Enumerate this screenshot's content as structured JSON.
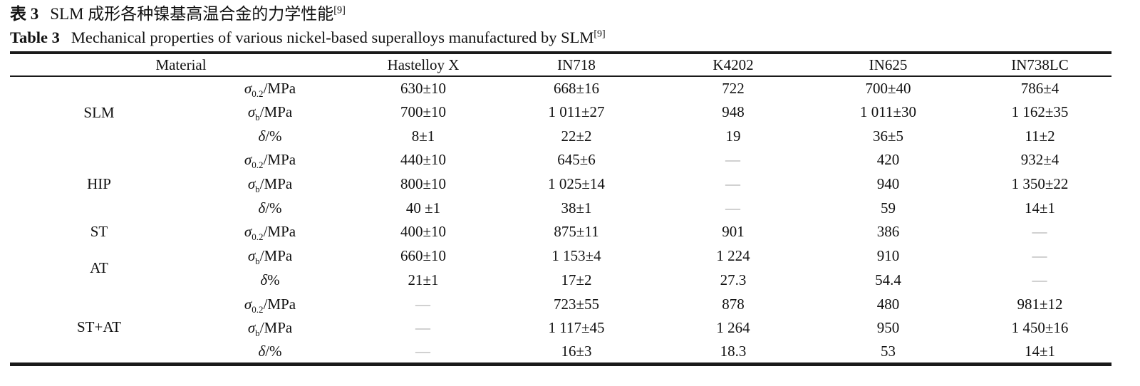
{
  "caption": {
    "zh_label": "表 3",
    "zh_text": "SLM 成形各种镍基高温合金的力学性能",
    "zh_ref": "[9]",
    "en_label": "Table 3",
    "en_text": "Mechanical properties of various nickel-based superalloys manufactured by SLM",
    "en_ref": "[9]"
  },
  "table": {
    "header": {
      "material": "Material",
      "columns": [
        "Hastelloy X",
        "IN718",
        "K4202",
        "IN625",
        "IN738LC"
      ]
    },
    "dash_color": "#a3a3a3",
    "rows": [
      {
        "group": "SLM",
        "prop": {
          "sym": "σ",
          "sub": "0.2",
          "rest": "/MPa"
        },
        "values": [
          "630±10",
          "668±16",
          "722",
          "700±40",
          "786±4"
        ]
      },
      {
        "prop": {
          "sym": "σ",
          "sub": "b",
          "rest": "/MPa"
        },
        "values": [
          "700±10",
          "1 011±27",
          "948",
          "1 011±30",
          "1 162±35"
        ]
      },
      {
        "prop": {
          "sym": "δ",
          "sub": "",
          "rest": "/%"
        },
        "values": [
          "8±1",
          "22±2",
          "19",
          "36±5",
          "11±2"
        ]
      },
      {
        "group": "HIP",
        "prop": {
          "sym": "σ",
          "sub": "0.2",
          "rest": "/MPa"
        },
        "values": [
          "440±10",
          "645±6",
          "—",
          "420",
          "932±4"
        ]
      },
      {
        "prop": {
          "sym": "σ",
          "sub": "b",
          "rest": "/MPa"
        },
        "values": [
          "800±10",
          "1 025±14",
          "—",
          "940",
          "1 350±22"
        ]
      },
      {
        "prop": {
          "sym": "δ",
          "sub": "",
          "rest": "/%"
        },
        "values": [
          "40 ±1",
          "38±1",
          "—",
          "59",
          "14±1"
        ]
      },
      {
        "group": "ST",
        "prop": {
          "sym": "σ",
          "sub": "0.2",
          "rest": "/MPa"
        },
        "values": [
          "400±10",
          "875±11",
          "901",
          "386",
          "—"
        ]
      },
      {
        "group": "AT",
        "prop": {
          "sym": "σ",
          "sub": "b",
          "rest": "/MPa"
        },
        "values": [
          "660±10",
          "1 153±4",
          "1 224",
          "910",
          "—"
        ]
      },
      {
        "prop": {
          "sym": "δ",
          "sub": "",
          "rest": "%"
        },
        "values": [
          "21±1",
          "17±2",
          "27.3",
          "54.4",
          "—"
        ]
      },
      {
        "group": "ST+AT",
        "prop": {
          "sym": "σ",
          "sub": "0.2",
          "rest": "/MPa"
        },
        "values": [
          "—",
          "723±55",
          "878",
          "480",
          "981±12"
        ]
      },
      {
        "prop": {
          "sym": "σ",
          "sub": "b",
          "rest": "/MPa"
        },
        "values": [
          "—",
          "1 117±45",
          "1 264",
          "950",
          "1 450±16"
        ]
      },
      {
        "prop": {
          "sym": "δ",
          "sub": "",
          "rest": "/%"
        },
        "values": [
          "—",
          "16±3",
          "18.3",
          "53",
          "14±1"
        ]
      }
    ]
  }
}
